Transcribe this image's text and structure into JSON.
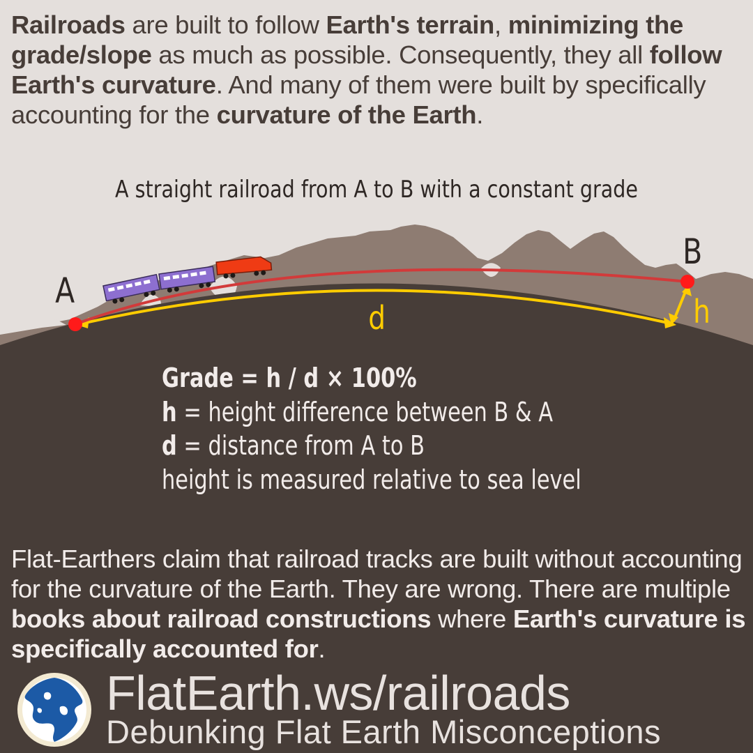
{
  "intro": {
    "s1": "Railroads",
    "s2": " are built to follow ",
    "s3": "Earth's terrain",
    "s4": ", ",
    "s5": "minimizing the grade/slope",
    "s6": " as much as possible. Consequently, they all ",
    "s7": "follow Earth's curvature",
    "s8": ". And many of them were built by specifically accounting for the ",
    "s9": "curvature of the Earth",
    "s10": "."
  },
  "diagram": {
    "subtitle": "A straight railroad from A to B with a constant grade",
    "point_a": "A",
    "point_b": "B",
    "distance_label": "d",
    "height_label": "h"
  },
  "formula": {
    "line1": "Grade = h / d × 100%",
    "h_key": "h",
    "h_text": " = height difference between B & A",
    "d_key": "d",
    "d_text": " = distance from A to B",
    "line4": "height is measured relative to sea level"
  },
  "claim": {
    "s1": "Flat-Earthers claim that railroad tracks are built without accounting for the curvature of the Earth. They are wrong. There are multiple ",
    "s2": "books about railroad constructions",
    "s3": " where ",
    "s4": "Earth's curvature is specifically accounted for",
    "s5": "."
  },
  "footer": {
    "brand": "FlatEarth.ws/railroads",
    "tagline": "Debunking Flat Earth Misconceptions",
    "logo_icon": "globe-logo-icon"
  },
  "colors": {
    "background": "#e4dfdc",
    "earth": "#473d38",
    "mountains": "#8e7c72",
    "railroad": "#d23a3a",
    "arc": "#ffcc00",
    "points": "#ff1a1a"
  }
}
